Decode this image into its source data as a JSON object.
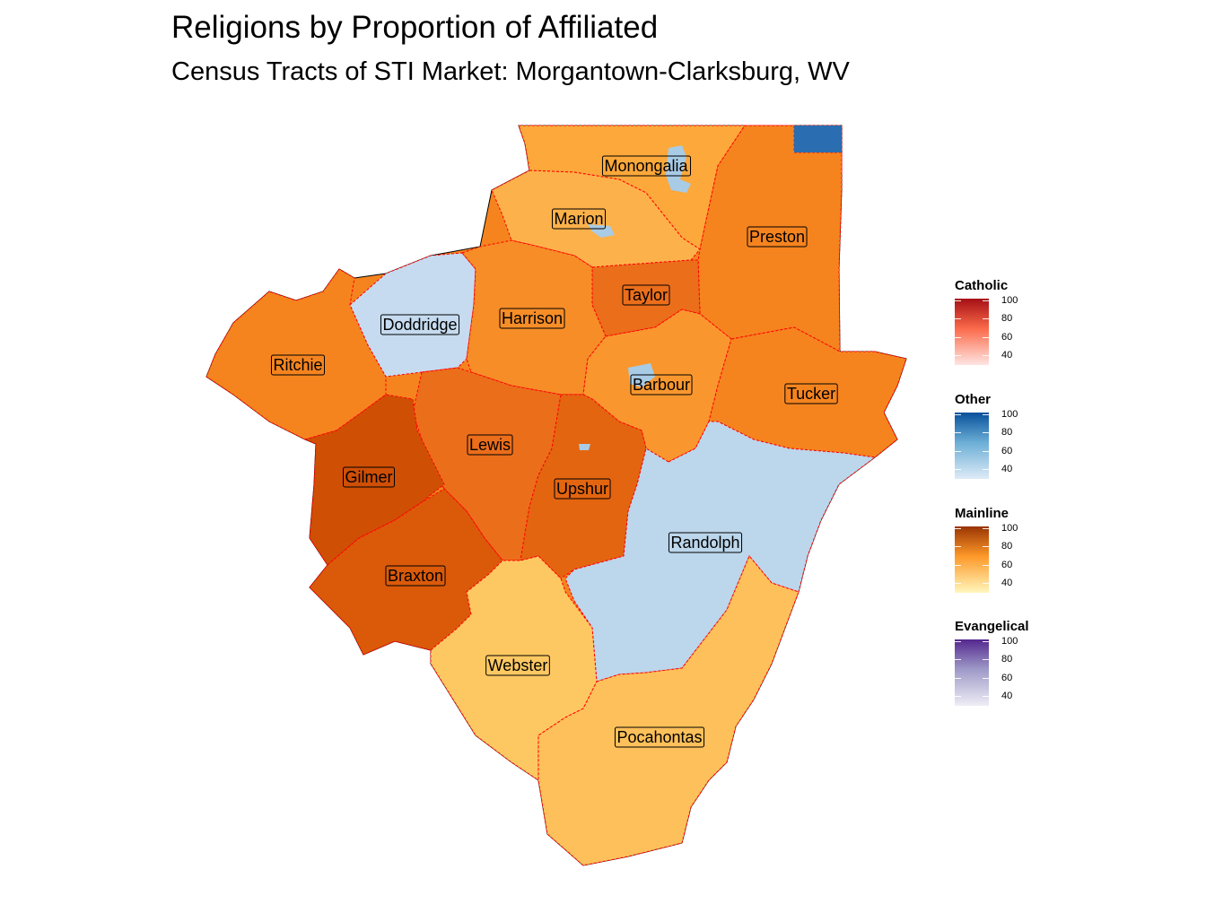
{
  "title": "Religions by Proportion of Affiliated",
  "subtitle": "Census Tracts of STI Market: Morgantown-Clarksburg, WV",
  "counties": [
    {
      "name": "Monongalia",
      "category": "Mainline",
      "color": "#fca83a"
    },
    {
      "name": "Marion",
      "category": "Mainline",
      "color": "#fdb14a"
    },
    {
      "name": "Preston",
      "category": "Mainline",
      "color": "#f5841f"
    },
    {
      "name": "Taylor",
      "category": "Mainline",
      "color": "#eb6e1b"
    },
    {
      "name": "Doddridge",
      "category": "Other",
      "color": "#c6dbef"
    },
    {
      "name": "Harrison",
      "category": "Mainline",
      "color": "#f68d27"
    },
    {
      "name": "Ritchie",
      "category": "Mainline",
      "color": "#f5841f"
    },
    {
      "name": "Barbour",
      "category": "Mainline",
      "color": "#f9972e"
    },
    {
      "name": "Tucker",
      "category": "Mainline",
      "color": "#f5841f"
    },
    {
      "name": "Lewis",
      "category": "Mainline",
      "color": "#eb6e1b"
    },
    {
      "name": "Gilmer",
      "category": "Mainline",
      "color": "#cf4f05"
    },
    {
      "name": "Upshur",
      "category": "Mainline",
      "color": "#e36510"
    },
    {
      "name": "Randolph",
      "category": "Other",
      "color": "#bcd6eb"
    },
    {
      "name": "Braxton",
      "category": "Mainline",
      "color": "#da5a0a"
    },
    {
      "name": "Webster",
      "category": "Mainline",
      "color": "#fdc862"
    },
    {
      "name": "Pocahontas",
      "category": "Mainline",
      "color": "#fdc05a"
    }
  ],
  "legends": [
    {
      "title": "Catholic",
      "colors": [
        "#ffe5e2",
        "#fb6a4a",
        "#a50f15"
      ],
      "ticks": [
        "100",
        "80",
        "60",
        "40"
      ]
    },
    {
      "title": "Other",
      "colors": [
        "#deebf7",
        "#6baed6",
        "#08519c"
      ],
      "ticks": [
        "100",
        "80",
        "60",
        "40"
      ]
    },
    {
      "title": "Mainline",
      "colors": [
        "#fff7bc",
        "#fe9929",
        "#993404"
      ],
      "ticks": [
        "100",
        "80",
        "60",
        "40"
      ]
    },
    {
      "title": "Evangelical",
      "colors": [
        "#efedf5",
        "#9e9ac8",
        "#54278f"
      ],
      "ticks": [
        "100",
        "80",
        "60",
        "40"
      ]
    }
  ]
}
